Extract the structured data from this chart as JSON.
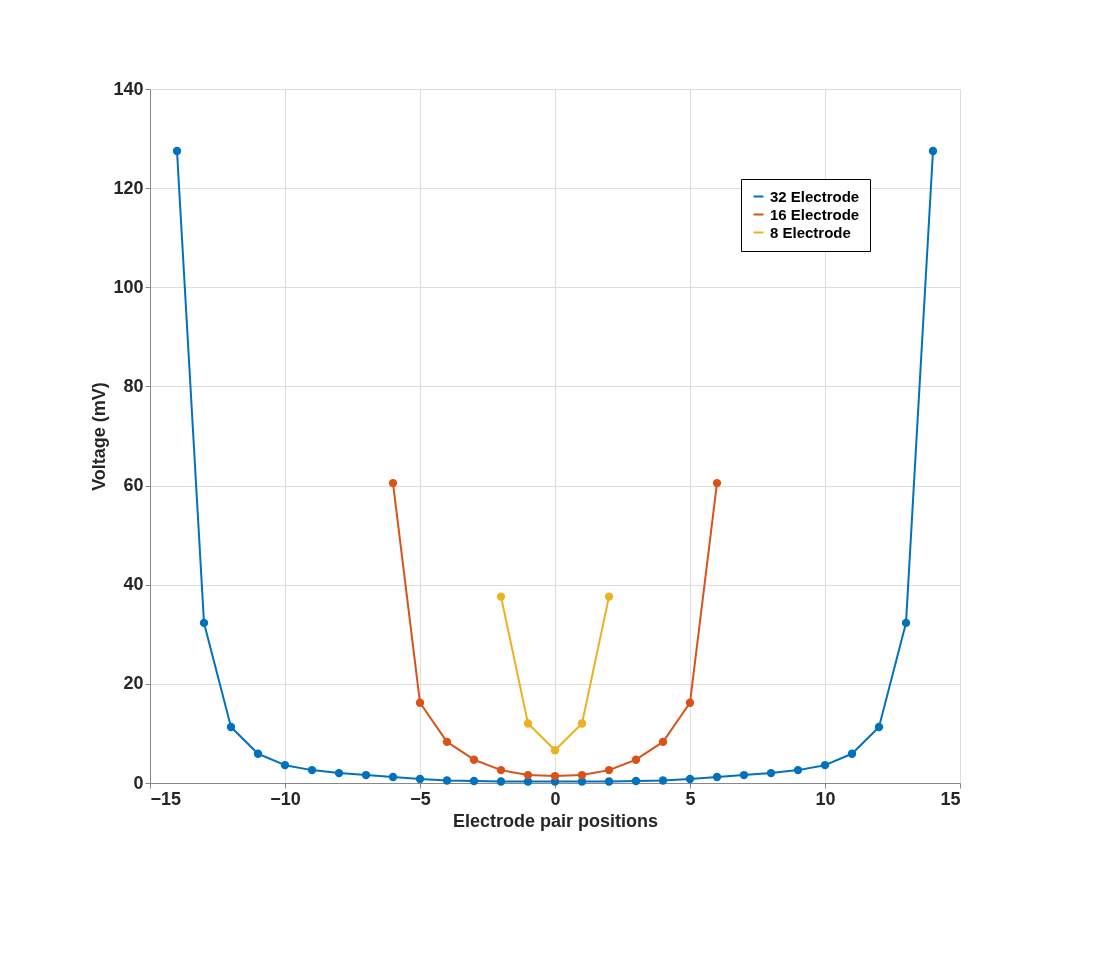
{
  "chart_data": {
    "type": "line",
    "xlabel": "Electrode pair positions",
    "ylabel": "Voltage (mV)",
    "xlim": [
      -15,
      15
    ],
    "xticks": [
      -15,
      -10,
      -5,
      0,
      5,
      10,
      15
    ],
    "ylim": [
      0,
      140
    ],
    "yticks": [
      0,
      20,
      40,
      60,
      80,
      100,
      120,
      140
    ],
    "grid": true,
    "legend": "top right",
    "marker": "circle",
    "line_style": "solid",
    "series": [
      {
        "name": "32 Electrode",
        "color": "#0072bd",
        "x": [
          -14,
          -13,
          -12,
          -11,
          -10,
          -9,
          -8,
          -7,
          -6,
          -5,
          -4,
          -3,
          -2,
          -1,
          0,
          1,
          2,
          3,
          4,
          5,
          6,
          7,
          8,
          9,
          10,
          11,
          12,
          13,
          14
        ],
        "values": [
          127.5,
          32.3,
          11.3,
          5.9,
          3.6,
          2.6,
          2.0,
          1.6,
          1.2,
          0.8,
          0.5,
          0.4,
          0.3,
          0.3,
          0.3,
          0.3,
          0.3,
          0.4,
          0.5,
          0.8,
          1.2,
          1.6,
          2.0,
          2.6,
          3.6,
          5.9,
          11.3,
          32.3,
          127.5
        ]
      },
      {
        "name": "16 Electrode",
        "color": "#d95319",
        "x": [
          -6,
          -5,
          -4,
          -3,
          -2,
          -1,
          0,
          1,
          2,
          3,
          4,
          5,
          6
        ],
        "values": [
          60.5,
          16.2,
          8.3,
          4.7,
          2.6,
          1.6,
          1.4,
          1.6,
          2.6,
          4.7,
          8.3,
          16.2,
          60.5
        ]
      },
      {
        "name": "8   Electrode",
        "color": "#edb120",
        "x": [
          -2,
          -1,
          0,
          1,
          2
        ],
        "values": [
          37.6,
          12.0,
          6.6,
          12.0,
          37.6
        ]
      }
    ]
  }
}
